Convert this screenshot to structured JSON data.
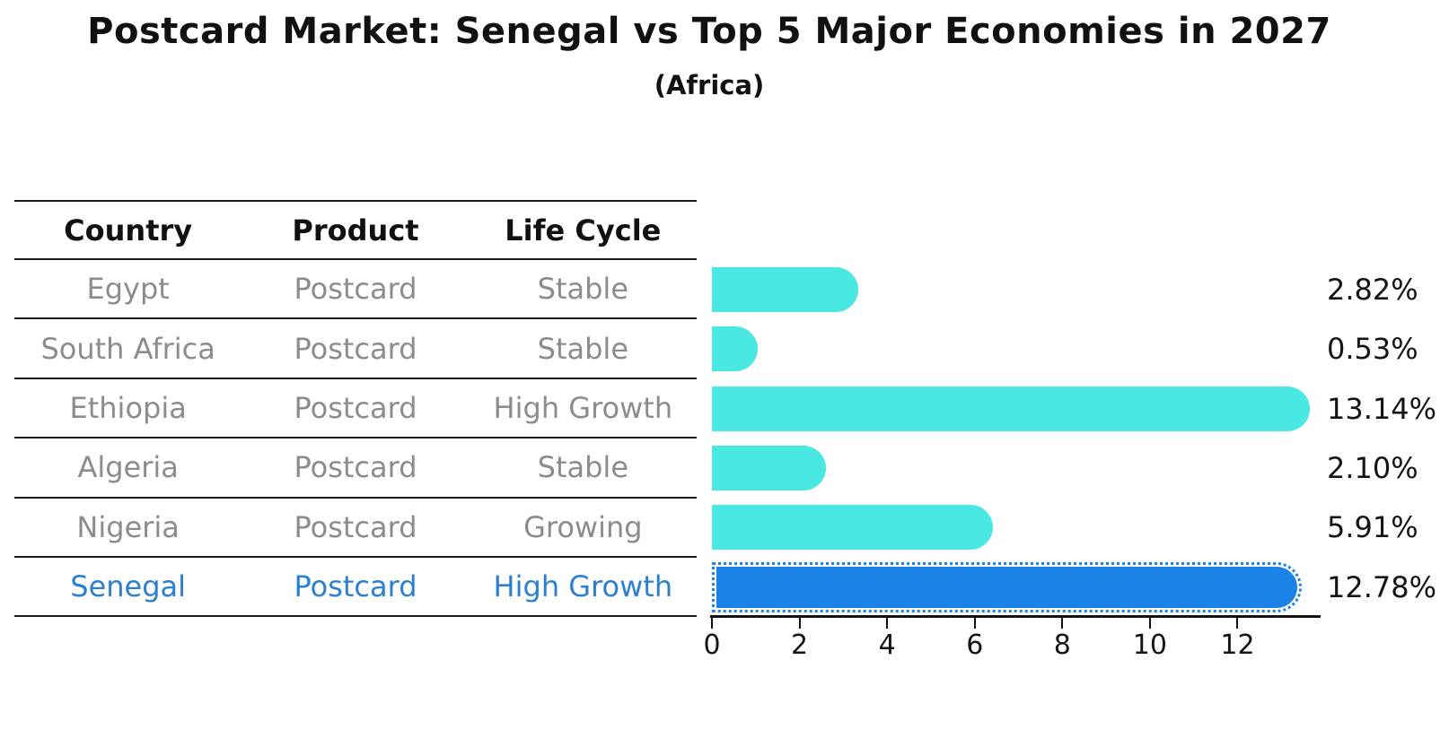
{
  "title": "Postcard Market: Senegal vs Top 5 Major Economies in 2027",
  "subtitle": "(Africa)",
  "table": {
    "headers": [
      "Country",
      "Product",
      "Life Cycle"
    ],
    "rows": [
      {
        "country": "Egypt",
        "product": "Postcard",
        "life_cycle": "Stable",
        "highlighted": false
      },
      {
        "country": "South Africa",
        "product": "Postcard",
        "life_cycle": "Stable",
        "highlighted": false
      },
      {
        "country": "Ethiopia",
        "product": "Postcard",
        "life_cycle": "High Growth",
        "highlighted": false
      },
      {
        "country": "Algeria",
        "product": "Postcard",
        "life_cycle": "Stable",
        "highlighted": false
      },
      {
        "country": "Nigeria",
        "product": "Postcard",
        "life_cycle": "Growing",
        "highlighted": false
      },
      {
        "country": "Senegal",
        "product": "Postcard",
        "life_cycle": "High Growth",
        "highlighted": true
      }
    ]
  },
  "chart_data": {
    "type": "bar",
    "orientation": "horizontal",
    "title": "Postcard Market: Senegal vs Top 5 Major Economies in 2027",
    "subtitle": "(Africa)",
    "categories": [
      "Egypt",
      "South Africa",
      "Ethiopia",
      "Algeria",
      "Nigeria",
      "Senegal"
    ],
    "values": [
      2.82,
      0.53,
      13.14,
      2.1,
      5.91,
      12.78
    ],
    "value_labels": [
      "2.82%",
      "0.53%",
      "13.14%",
      "2.10%",
      "5.91%",
      "12.78%"
    ],
    "x_ticks": [
      0,
      2,
      4,
      6,
      8,
      10,
      12
    ],
    "xlim": [
      0,
      13.9
    ],
    "grid": false,
    "legend": "none",
    "highlight_category": "Senegal",
    "colors": {
      "bar": "#4ae8e2",
      "highlight_bar": "#1b82e8",
      "highlight_text": "#2a7fd0"
    }
  }
}
